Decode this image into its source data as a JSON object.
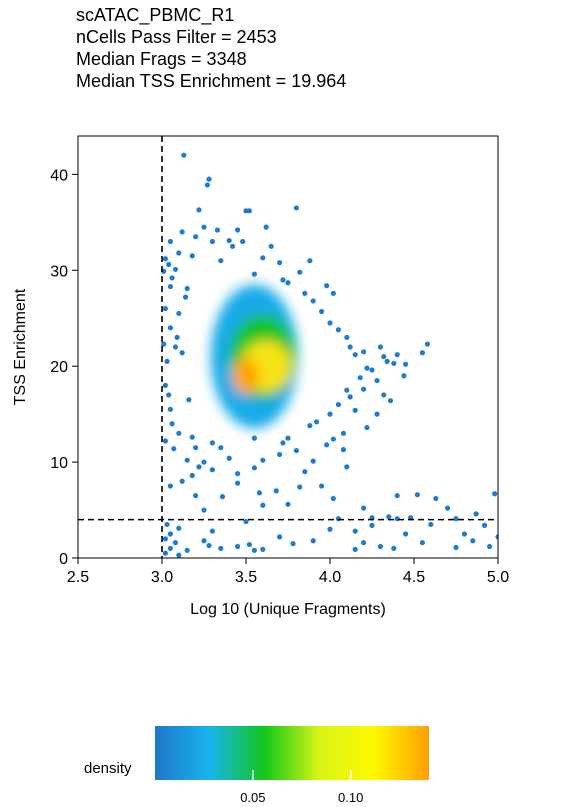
{
  "chart_data": {
    "type": "scatter",
    "title_lines": [
      "scATAC_PBMC_R1",
      "nCells Pass Filter = 2453",
      "Median Frags = 3348",
      "Median TSS Enrichment = 19.964"
    ],
    "xlabel": "Log 10 (Unique Fragments)",
    "ylabel": "TSS Enrichment",
    "xlim": [
      2.5,
      5.0
    ],
    "ylim": [
      0,
      44
    ],
    "x_ticks": [
      2.5,
      3.0,
      3.5,
      4.0,
      4.5,
      5.0
    ],
    "x_tick_labels": [
      "2.5",
      "3.0",
      "3.5",
      "4.0",
      "4.5",
      "5.0"
    ],
    "y_ticks": [
      0,
      10,
      20,
      30,
      40
    ],
    "y_tick_labels": [
      "0",
      "10",
      "20",
      "30",
      "40"
    ],
    "thresholds": {
      "x": 3.0,
      "y": 4
    },
    "grid": false,
    "legend": {
      "title": "density",
      "ticks": [
        0.05,
        0.1
      ],
      "tick_labels": [
        "0.05",
        "0.10"
      ],
      "range": [
        0.0,
        0.14
      ],
      "colors": [
        "#1f77c8",
        "#18b4ee",
        "#12c71a",
        "#d8f516",
        "#fef800",
        "#ff9f00"
      ]
    },
    "density_regions": [
      {
        "name": "low",
        "color": "#13aae7",
        "center": [
          3.55,
          21.0
        ],
        "spread": [
          0.26,
          7.5
        ]
      },
      {
        "name": "mid",
        "color": "#16c228",
        "center": [
          3.6,
          21.0
        ],
        "spread": [
          0.2,
          4.4
        ]
      },
      {
        "name": "high",
        "color": "#f6e318",
        "center": [
          3.62,
          20.0
        ],
        "spread": [
          0.15,
          2.7
        ]
      },
      {
        "name": "peak",
        "color": "#ffa400",
        "center": [
          3.5,
          19.0
        ],
        "spread": [
          0.08,
          1.9
        ]
      }
    ],
    "points": [
      [
        3.13,
        42.0
      ],
      [
        3.28,
        39.5
      ],
      [
        3.27,
        38.9
      ],
      [
        3.22,
        36.3
      ],
      [
        3.5,
        36.2
      ],
      [
        3.52,
        36.2
      ],
      [
        3.8,
        36.5
      ],
      [
        3.12,
        34.0
      ],
      [
        3.25,
        34.5
      ],
      [
        3.45,
        34.2
      ],
      [
        3.05,
        33.0
      ],
      [
        3.2,
        33.5
      ],
      [
        3.3,
        33.0
      ],
      [
        3.4,
        33.1
      ],
      [
        3.65,
        32.5
      ],
      [
        3.02,
        31.2
      ],
      [
        3.1,
        31.8
      ],
      [
        3.18,
        31.5
      ],
      [
        3.35,
        31.0
      ],
      [
        3.6,
        31.3
      ],
      [
        3.7,
        30.8
      ],
      [
        3.01,
        29.9
      ],
      [
        3.08,
        30.1
      ],
      [
        3.55,
        29.6
      ],
      [
        3.72,
        29.0
      ],
      [
        3.75,
        28.7
      ],
      [
        3.05,
        28.3
      ],
      [
        3.15,
        28.1
      ],
      [
        3.85,
        27.6
      ],
      [
        3.9,
        26.8
      ],
      [
        3.02,
        26.0
      ],
      [
        3.1,
        25.5
      ],
      [
        3.95,
        25.7
      ],
      [
        4.0,
        24.5
      ],
      [
        3.05,
        24.0
      ],
      [
        4.05,
        23.8
      ],
      [
        4.1,
        23.0
      ],
      [
        3.01,
        22.3
      ],
      [
        4.12,
        22.0
      ],
      [
        4.58,
        22.3
      ],
      [
        3.08,
        22.0
      ],
      [
        4.3,
        22.0
      ],
      [
        4.15,
        21.2
      ],
      [
        4.2,
        21.5
      ],
      [
        4.32,
        21.0
      ],
      [
        4.4,
        21.2
      ],
      [
        4.34,
        20.5
      ],
      [
        4.38,
        20.3
      ],
      [
        4.45,
        20.2
      ],
      [
        4.22,
        19.8
      ],
      [
        4.25,
        19.6
      ],
      [
        3.03,
        20.5
      ],
      [
        4.18,
        18.8
      ],
      [
        4.1,
        17.5
      ],
      [
        4.12,
        16.8
      ],
      [
        4.05,
        16.0
      ],
      [
        3.02,
        18.0
      ],
      [
        3.04,
        17.0
      ],
      [
        4.15,
        15.4
      ],
      [
        4.0,
        15.0
      ],
      [
        3.05,
        15.5
      ],
      [
        3.92,
        14.2
      ],
      [
        3.88,
        13.8
      ],
      [
        3.06,
        14.0
      ],
      [
        4.08,
        13.0
      ],
      [
        4.22,
        13.6
      ],
      [
        3.1,
        13.0
      ],
      [
        3.75,
        12.5
      ],
      [
        3.72,
        12.0
      ],
      [
        3.8,
        11.2
      ],
      [
        3.55,
        12.5
      ],
      [
        3.3,
        12.0
      ],
      [
        3.35,
        11.5
      ],
      [
        3.2,
        11.5
      ],
      [
        3.15,
        10.2
      ],
      [
        3.25,
        10.0
      ],
      [
        3.4,
        10.4
      ],
      [
        3.6,
        10.2
      ],
      [
        3.7,
        10.8
      ],
      [
        3.9,
        10.1
      ],
      [
        3.85,
        9.0
      ],
      [
        3.22,
        9.5
      ],
      [
        3.3,
        9.2
      ],
      [
        3.55,
        9.4
      ],
      [
        4.1,
        9.5
      ],
      [
        3.45,
        8.8
      ],
      [
        3.05,
        7.5
      ],
      [
        3.12,
        8.0
      ],
      [
        3.18,
        8.6
      ],
      [
        3.95,
        7.5
      ],
      [
        3.2,
        6.5
      ],
      [
        3.6,
        5.5
      ],
      [
        3.75,
        5.6
      ],
      [
        4.2,
        5.2
      ],
      [
        4.4,
        6.5
      ],
      [
        4.52,
        6.6
      ],
      [
        4.63,
        6.2
      ],
      [
        4.98,
        6.7
      ],
      [
        3.25,
        5.0
      ],
      [
        4.05,
        4.1
      ],
      [
        4.25,
        4.2
      ],
      [
        4.35,
        4.3
      ],
      [
        4.4,
        4.1
      ],
      [
        4.75,
        4.1
      ],
      [
        4.87,
        4.6
      ],
      [
        4.7,
        5.2
      ],
      [
        4.48,
        4.2
      ],
      [
        3.03,
        3.5
      ],
      [
        3.05,
        2.5
      ],
      [
        3.1,
        3.1
      ],
      [
        3.3,
        2.8
      ],
      [
        3.5,
        3.8
      ],
      [
        3.7,
        2.2
      ],
      [
        4.0,
        3.0
      ],
      [
        4.15,
        2.8
      ],
      [
        4.25,
        3.4
      ],
      [
        4.45,
        2.5
      ],
      [
        4.6,
        3.5
      ],
      [
        4.8,
        2.5
      ],
      [
        4.92,
        3.4
      ],
      [
        5.0,
        2.2
      ],
      [
        3.02,
        2.0
      ],
      [
        3.08,
        1.6
      ],
      [
        3.05,
        1.0
      ],
      [
        3.15,
        0.8
      ],
      [
        3.02,
        0.5
      ],
      [
        3.1,
        0.3
      ],
      [
        3.25,
        1.8
      ],
      [
        3.28,
        1.3
      ],
      [
        3.35,
        1.0
      ],
      [
        3.52,
        1.4
      ],
      [
        3.55,
        0.8
      ],
      [
        3.6,
        0.9
      ],
      [
        3.78,
        1.5
      ],
      [
        3.9,
        1.8
      ],
      [
        4.15,
        0.9
      ],
      [
        4.3,
        1.2
      ],
      [
        4.38,
        1.0
      ],
      [
        4.55,
        1.6
      ],
      [
        4.75,
        1.1
      ],
      [
        4.85,
        1.8
      ],
      [
        4.95,
        1.2
      ],
      [
        4.2,
        1.6
      ],
      [
        3.45,
        1.2
      ],
      [
        3.04,
        30.6
      ],
      [
        3.06,
        29.2
      ],
      [
        3.14,
        27.2
      ],
      [
        3.09,
        23.0
      ],
      [
        3.12,
        21.4
      ],
      [
        4.02,
        27.6
      ],
      [
        3.98,
        28.4
      ],
      [
        3.82,
        29.8
      ],
      [
        3.88,
        31.0
      ],
      [
        4.28,
        18.5
      ],
      [
        4.2,
        17.6
      ],
      [
        4.32,
        17.0
      ],
      [
        4.02,
        12.4
      ],
      [
        4.08,
        11.3
      ],
      [
        3.98,
        11.8
      ],
      [
        3.42,
        32.5
      ],
      [
        3.33,
        34.2
      ],
      [
        3.48,
        33.0
      ],
      [
        3.62,
        34.5
      ],
      [
        3.45,
        7.8
      ],
      [
        3.68,
        7.0
      ],
      [
        3.82,
        7.4
      ],
      [
        3.58,
        6.8
      ],
      [
        3.36,
        6.4
      ],
      [
        4.02,
        6.2
      ],
      [
        4.55,
        21.4
      ],
      [
        4.44,
        19.0
      ],
      [
        4.36,
        16.4
      ],
      [
        4.28,
        15.0
      ],
      [
        3.02,
        12.2
      ],
      [
        3.07,
        11.4
      ],
      [
        3.16,
        16.5
      ],
      [
        3.18,
        12.6
      ]
    ]
  }
}
